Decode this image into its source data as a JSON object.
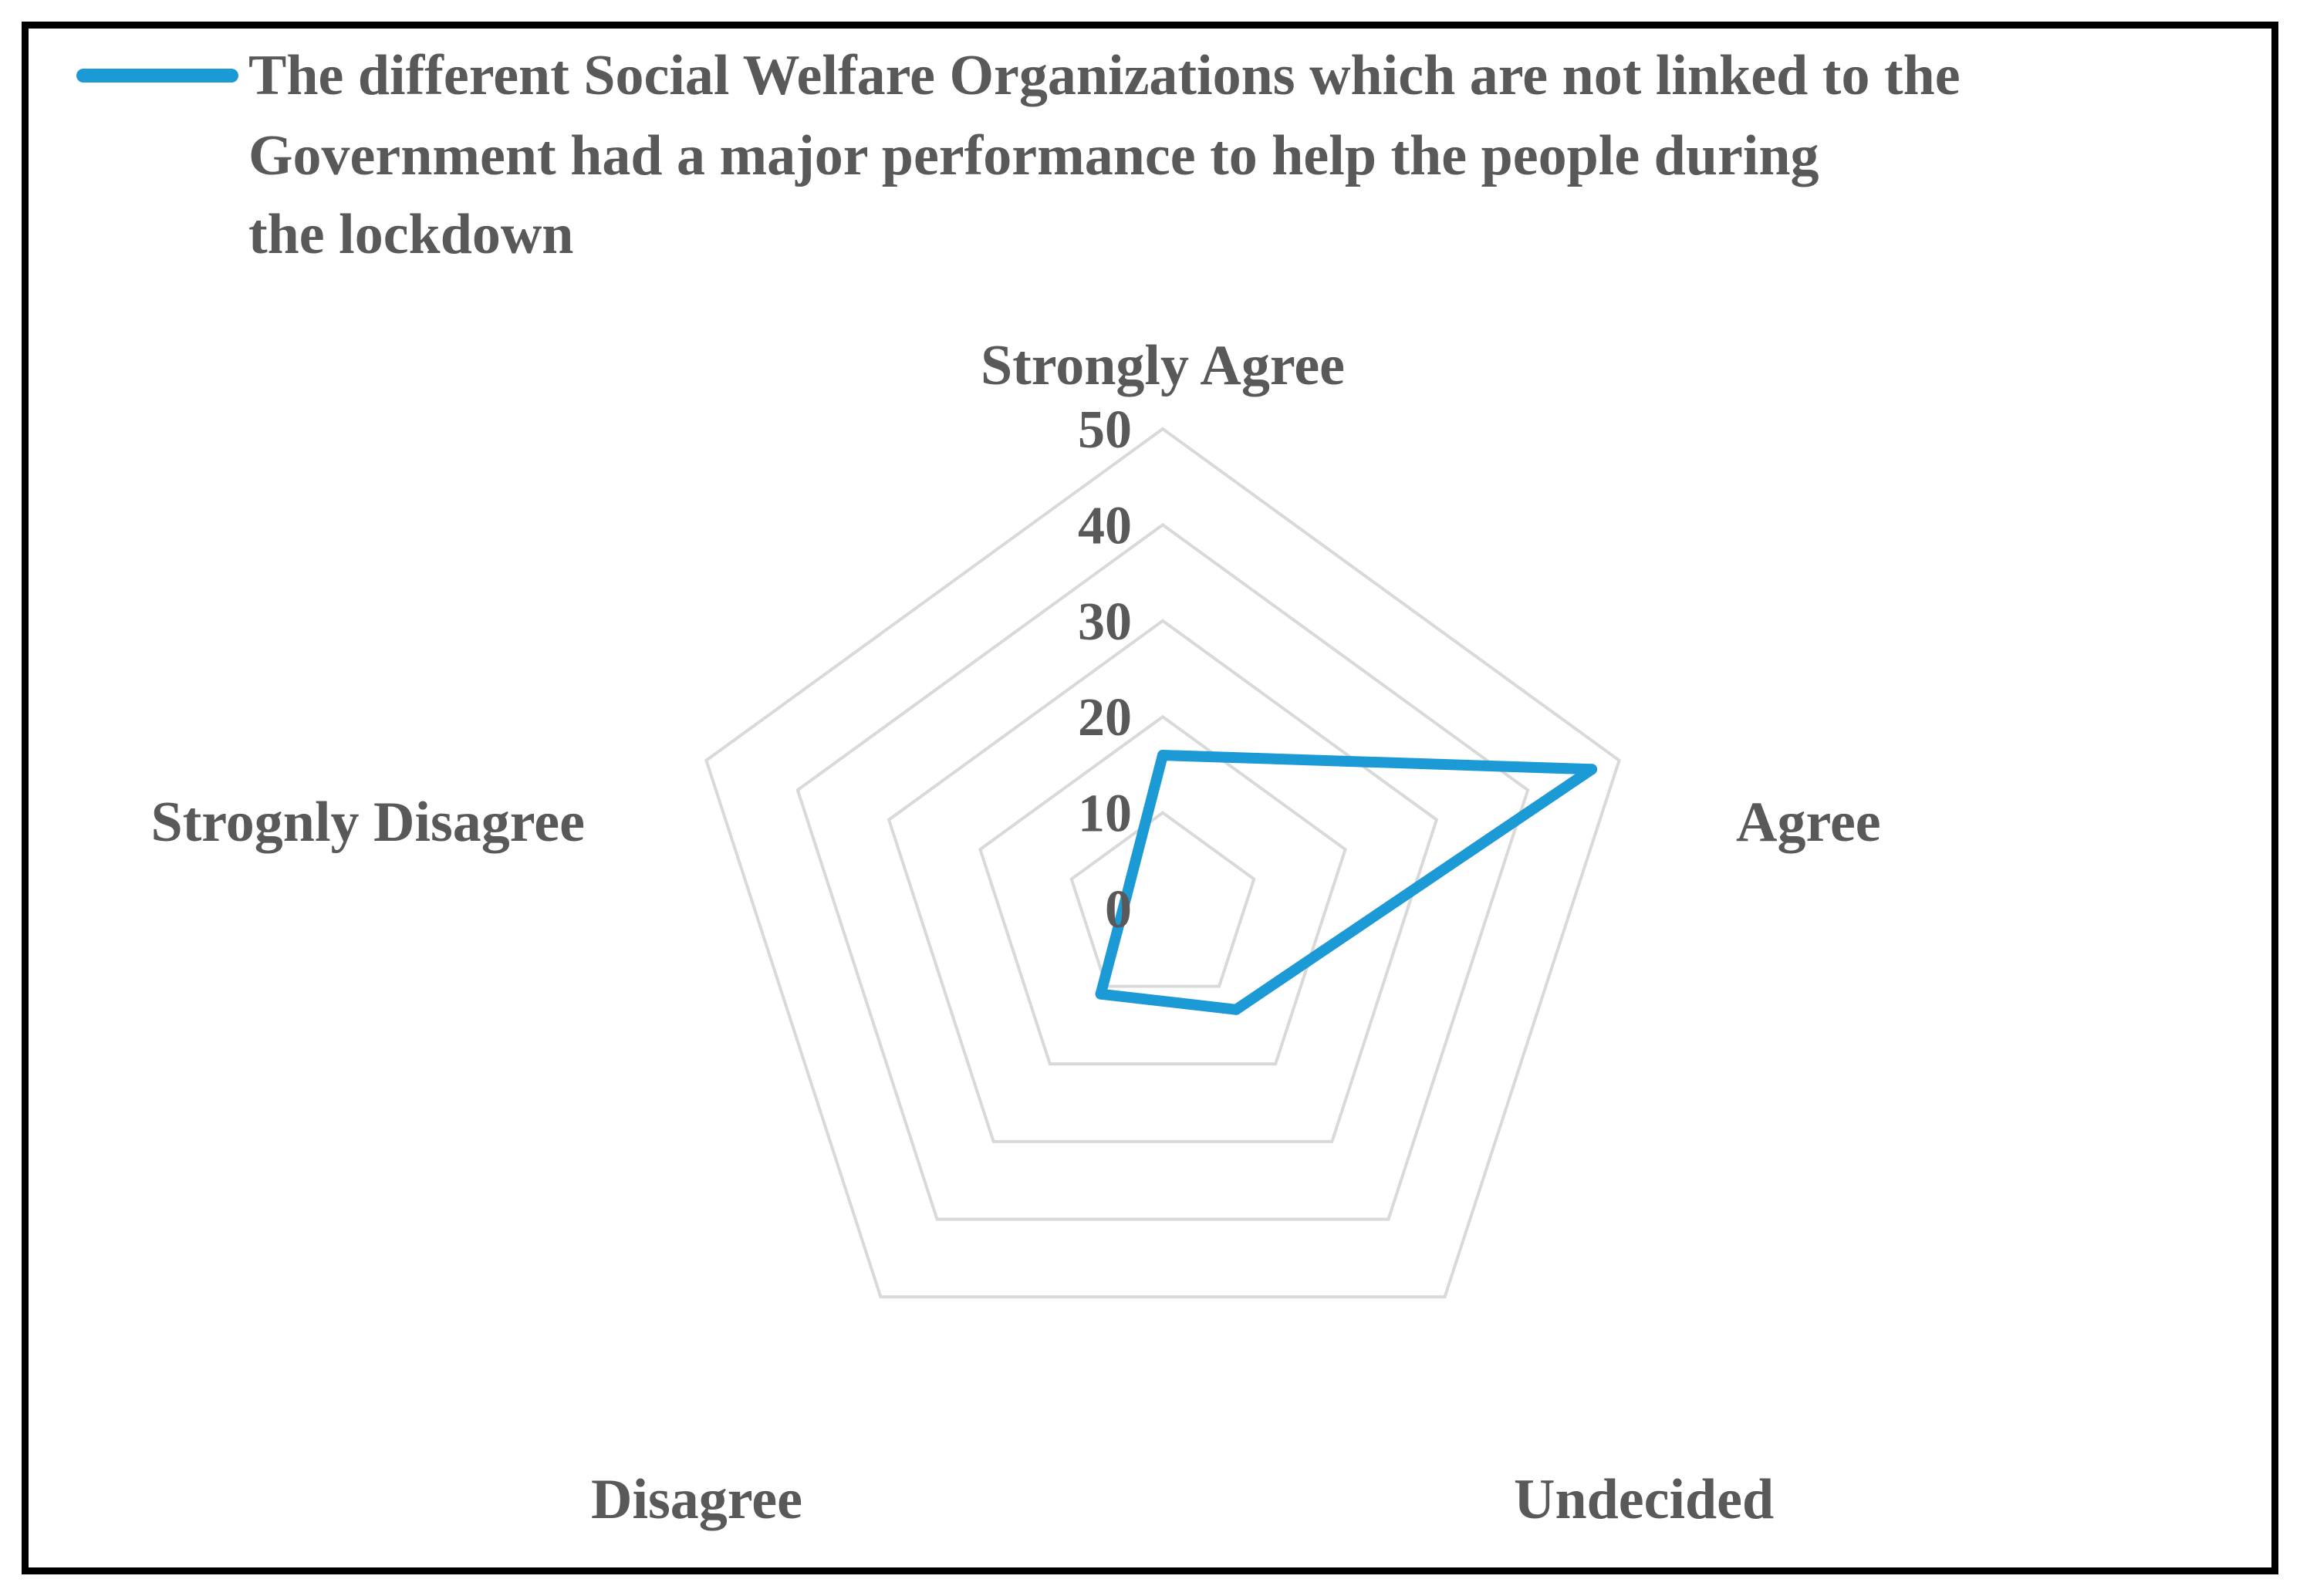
{
  "chart_data": {
    "type": "radar",
    "categories": [
      "Strongly Agree",
      "Agree",
      "Undecided",
      "Disagree",
      "Strognly Disagree"
    ],
    "series": [
      {
        "name": "The different Social Welfare Organizations which are not linked to the Government had a major performance to help the people during the lockdown",
        "values": [
          16,
          47,
          13,
          11,
          4
        ],
        "color": "#1b9ad6"
      }
    ],
    "radial_axis": {
      "min": 0,
      "max": 50,
      "ticks": [
        "0",
        "10",
        "20",
        "30",
        "40",
        "50"
      ]
    },
    "grid": true,
    "legend_position": "top"
  }
}
